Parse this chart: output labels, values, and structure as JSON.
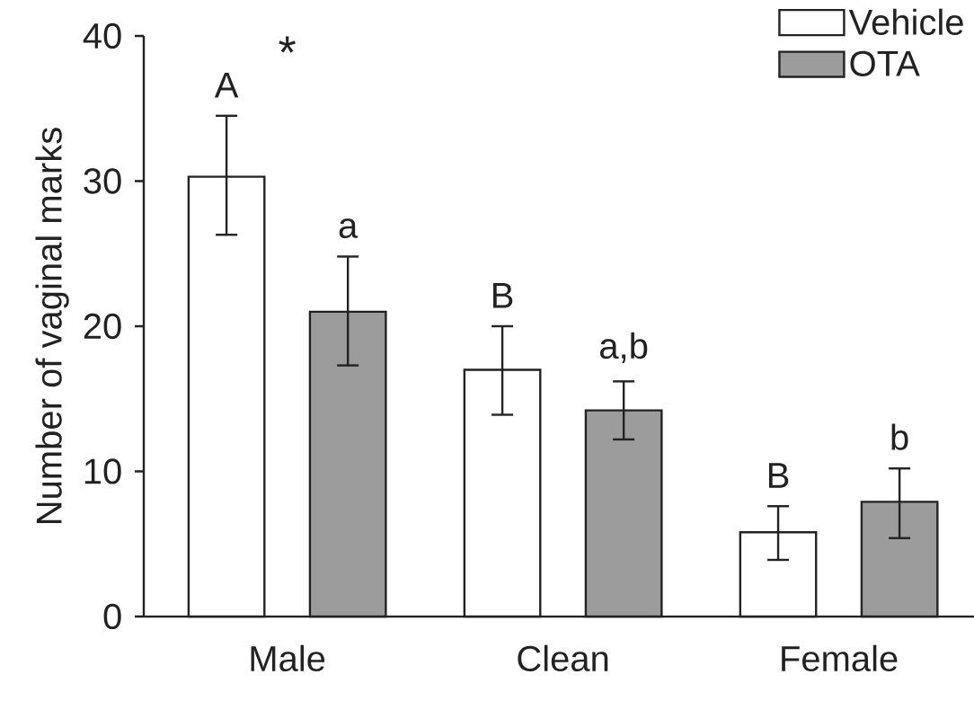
{
  "chart_data": {
    "type": "bar",
    "ylabel": "Number of vaginal marks",
    "categories": [
      "Male",
      "Clean",
      "Female"
    ],
    "series": [
      {
        "name": "Vehicle",
        "color": "#ffffff",
        "values": [
          30.3,
          17.0,
          5.8
        ],
        "errors": [
          [
            26.3,
            34.5
          ],
          [
            13.9,
            20.0
          ],
          [
            3.9,
            7.6
          ]
        ],
        "value_labels": [
          "A",
          "B",
          "B"
        ]
      },
      {
        "name": "OTA",
        "color": "#9c9c9c",
        "values": [
          21.0,
          14.2,
          7.9
        ],
        "errors": [
          [
            17.3,
            24.8
          ],
          [
            12.2,
            16.2
          ],
          [
            5.4,
            10.2
          ]
        ],
        "value_labels": [
          "a",
          "a,b",
          "b"
        ]
      }
    ],
    "ylim": [
      0,
      40
    ],
    "yticks": [
      0,
      10,
      20,
      30,
      40
    ],
    "legend": "top right",
    "annotations": [
      "*"
    ]
  }
}
